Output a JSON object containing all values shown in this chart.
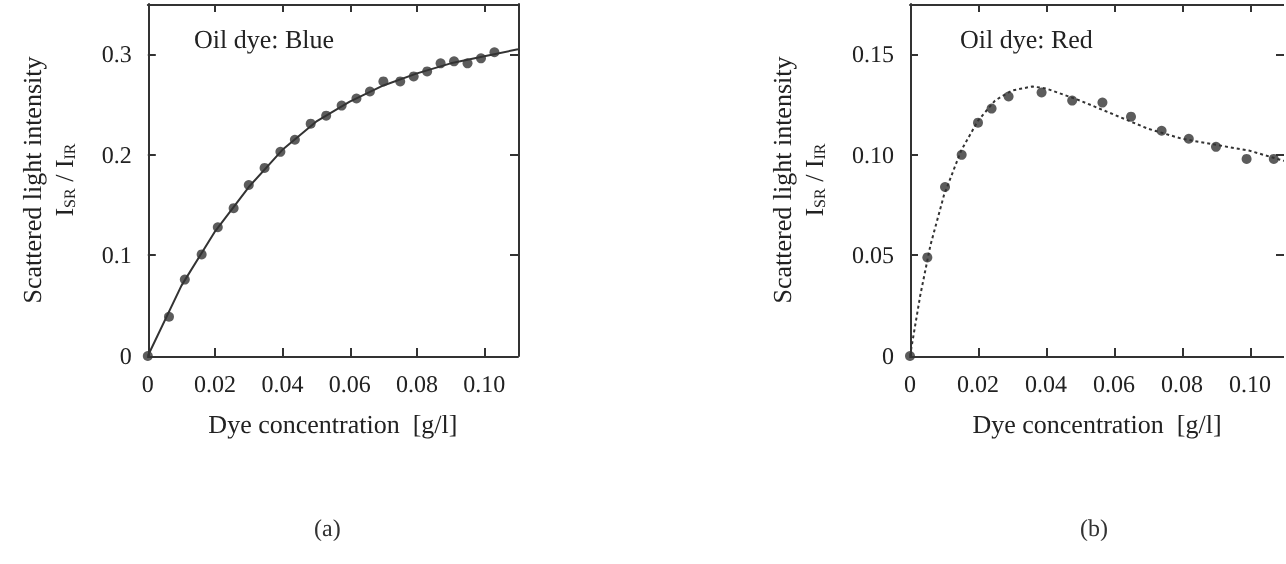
{
  "chart_data": [
    {
      "type": "scatter",
      "title": "Oil dye: Blue",
      "xlabel": "Dye concentration  [g/l]",
      "ylabel": "Scattered light intensity\nI$_{SR}$ / I$_{IR}$",
      "annotations": [
        "(a)"
      ],
      "grid": false,
      "xlim": [
        0,
        0.11
      ],
      "xticks": [
        0,
        0.02,
        0.04,
        0.06,
        0.08,
        {
          "value": 0.1,
          "label": "0.10"
        }
      ],
      "ylim": [
        0,
        0.35
      ],
      "yticks": [
        0,
        0.1,
        0.2,
        0.3
      ],
      "series": [
        {
          "type": "scatter",
          "marker": "circle",
          "color": "#333333",
          "x": [
            0,
            0.0063,
            0.011,
            0.016,
            0.0208,
            0.0255,
            0.03,
            0.0347,
            0.0394,
            0.0437,
            0.0484,
            0.053,
            0.0576,
            0.062,
            0.066,
            0.07,
            0.075,
            0.079,
            0.083,
            0.087,
            0.091,
            0.095,
            0.099,
            0.103
          ],
          "values": [
            0,
            0.039,
            0.076,
            0.101,
            0.128,
            0.147,
            0.17,
            0.187,
            0.203,
            0.215,
            0.231,
            0.239,
            0.249,
            0.256,
            0.263,
            0.273,
            0.273,
            0.278,
            0.283,
            0.291,
            0.293,
            0.291,
            0.296,
            0.302
          ]
        },
        {
          "type": "line",
          "marker": "none",
          "color": "#333333",
          "line_style": "solid",
          "x": [
            0,
            0.01,
            0.02,
            0.03,
            0.04,
            0.05,
            0.06,
            0.07,
            0.08,
            0.09,
            0.1,
            0.11
          ],
          "values": [
            0,
            0.07,
            0.124,
            0.168,
            0.205,
            0.233,
            0.253,
            0.269,
            0.281,
            0.291,
            0.298,
            0.305
          ]
        }
      ]
    },
    {
      "type": "scatter",
      "title": "Oil dye: Red",
      "xlabel": "Dye concentration  [g/l]",
      "ylabel": "Scattered light intensity\nI$_{SR}$ / I$_{IR}$",
      "annotations": [
        "(b)"
      ],
      "grid": false,
      "xlim": [
        0,
        0.11
      ],
      "xticks": [
        0,
        0.02,
        0.04,
        0.06,
        0.08,
        {
          "value": 0.1,
          "label": "0.10"
        }
      ],
      "ylim": [
        0,
        0.175
      ],
      "yticks": [
        0,
        {
          "value": 0.05,
          "label": "0.05"
        },
        {
          "value": 0.1,
          "label": "0.10"
        },
        0.15
      ],
      "series": [
        {
          "type": "scatter",
          "marker": "circle",
          "color": "#333333",
          "x": [
            0,
            0.0051,
            0.0103,
            0.0152,
            0.02,
            0.024,
            0.029,
            0.0387,
            0.0477,
            0.0566,
            0.065,
            0.074,
            0.082,
            0.09,
            0.099,
            0.107
          ],
          "values": [
            0,
            0.049,
            0.084,
            0.1,
            0.116,
            0.123,
            0.129,
            0.131,
            0.127,
            0.126,
            0.119,
            0.112,
            0.108,
            0.104,
            0.098,
            0.098
          ]
        },
        {
          "type": "line",
          "marker": "none",
          "color": "#333333",
          "line_style": "dotted",
          "x": [
            0,
            0.003,
            0.006,
            0.01,
            0.015,
            0.02,
            0.025,
            0.03,
            0.036,
            0.04,
            0.05,
            0.06,
            0.07,
            0.08,
            0.09,
            0.1,
            0.11
          ],
          "values": [
            0,
            0.03,
            0.055,
            0.08,
            0.102,
            0.117,
            0.127,
            0.132,
            0.134,
            0.133,
            0.127,
            0.12,
            0.113,
            0.108,
            0.105,
            0.102,
            0.097
          ]
        }
      ]
    }
  ]
}
